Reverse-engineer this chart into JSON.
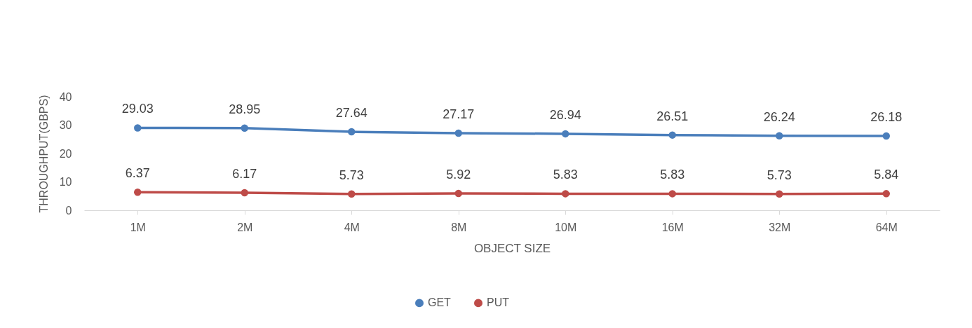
{
  "chart_data": {
    "type": "line",
    "xlabel": "OBJECT SIZE",
    "ylabel": "THROUGHPUT(GBPS)",
    "categories": [
      "1M",
      "2M",
      "4M",
      "8M",
      "10M",
      "16M",
      "32M",
      "64M"
    ],
    "series": [
      {
        "name": "GET",
        "color": "#4a7ebb",
        "values": [
          29.03,
          28.95,
          27.64,
          27.17,
          26.94,
          26.51,
          26.24,
          26.18
        ]
      },
      {
        "name": "PUT",
        "color": "#be4b48",
        "values": [
          6.37,
          6.17,
          5.73,
          5.92,
          5.83,
          5.83,
          5.73,
          5.84
        ]
      }
    ],
    "ylim": [
      0,
      40
    ],
    "yticks": [
      0,
      10,
      20,
      30,
      40
    ],
    "legend": "bottom",
    "marker": "circle",
    "data_labels": true
  }
}
